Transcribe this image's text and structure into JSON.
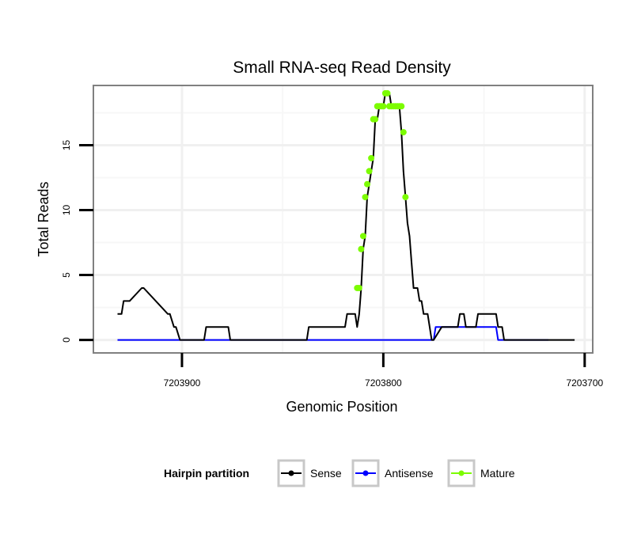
{
  "chart_data": {
    "type": "line",
    "title": "Small RNA-seq Read Density",
    "xlabel": "Genomic Position",
    "ylabel": "Total Reads",
    "x_reversed": true,
    "xlim": [
      7203944,
      7203696
    ],
    "ylim": [
      -1,
      19.6
    ],
    "x_ticks": [
      7203900,
      7203800,
      7203700
    ],
    "x_tick_labels": [
      "7203900",
      "7203800",
      "7203700"
    ],
    "y_ticks": [
      0,
      5,
      10,
      15
    ],
    "y_tick_labels": [
      "0",
      "5",
      "10",
      "15"
    ],
    "grid": true,
    "legend": {
      "title": "Hairpin partition",
      "placement": "bottom",
      "entries": [
        {
          "label": "Sense",
          "color": "#000000"
        },
        {
          "label": "Antisense",
          "color": "#0000ff"
        },
        {
          "label": "Mature",
          "color": "#7cfc00"
        }
      ]
    },
    "series": [
      {
        "name": "Sense",
        "color": "#000000",
        "x": [
          7203932,
          7203930,
          7203929,
          7203926,
          7203920,
          7203919,
          7203907,
          7203906,
          7203904,
          7203903,
          7203901,
          7203900,
          7203889,
          7203888,
          7203877,
          7203876,
          7203864,
          7203863,
          7203838,
          7203837,
          7203819,
          7203818,
          7203814,
          7203813,
          7203812,
          7203811,
          7203810,
          7203809,
          7203808,
          7203807,
          7203806,
          7203805,
          7203804,
          7203803,
          7203802,
          7203801,
          7203800,
          7203799,
          7203797,
          7203796,
          7203795,
          7203794,
          7203793,
          7203792,
          7203791,
          7203790,
          7203789,
          7203788,
          7203787,
          7203786,
          7203785,
          7203783,
          7203782,
          7203781,
          7203780,
          7203778,
          7203776,
          7203775,
          7203771,
          7203770,
          7203767,
          7203766,
          7203763,
          7203762,
          7203760,
          7203759,
          7203754,
          7203753,
          7203744,
          7203743,
          7203741,
          7203740,
          7203737,
          7203736,
          7203719,
          7203718,
          7203715,
          7203714,
          7203705
        ],
        "values": [
          2,
          2,
          3,
          3,
          4,
          4,
          2,
          2,
          1,
          1,
          0,
          0,
          0,
          1,
          1,
          0,
          0,
          0,
          0,
          1,
          1,
          2,
          2,
          1,
          2,
          4,
          7,
          8,
          11,
          12,
          13,
          14,
          17,
          17,
          18,
          18,
          18,
          19,
          19,
          18,
          18,
          18,
          18,
          18,
          16,
          13,
          11,
          9,
          8,
          6,
          4,
          4,
          3,
          3,
          2,
          2,
          0,
          0,
          1,
          1,
          1,
          1,
          1,
          2,
          2,
          1,
          1,
          2,
          2,
          1,
          1,
          0,
          0,
          0,
          0,
          0,
          0,
          0,
          0
        ]
      },
      {
        "name": "Antisense",
        "color": "#0000ff",
        "x": [
          7203932,
          7203775,
          7203774,
          7203744,
          7203743,
          7203718
        ],
        "values": [
          0,
          0,
          1,
          1,
          0,
          0
        ]
      },
      {
        "name": "Mature",
        "color": "#7cfc00",
        "x": [
          7203813,
          7203812,
          7203811,
          7203810,
          7203809,
          7203808,
          7203807,
          7203806,
          7203805,
          7203804,
          7203803,
          7203802,
          7203801,
          7203800,
          7203799,
          7203798,
          7203797,
          7203796,
          7203795,
          7203794,
          7203793,
          7203792,
          7203791,
          7203790,
          7203789
        ],
        "values": [
          4,
          4,
          7,
          8,
          11,
          12,
          13,
          14,
          17,
          17,
          18,
          18,
          18,
          18,
          19,
          19,
          18,
          18,
          18,
          18,
          18,
          18,
          18,
          16,
          11
        ]
      }
    ]
  }
}
